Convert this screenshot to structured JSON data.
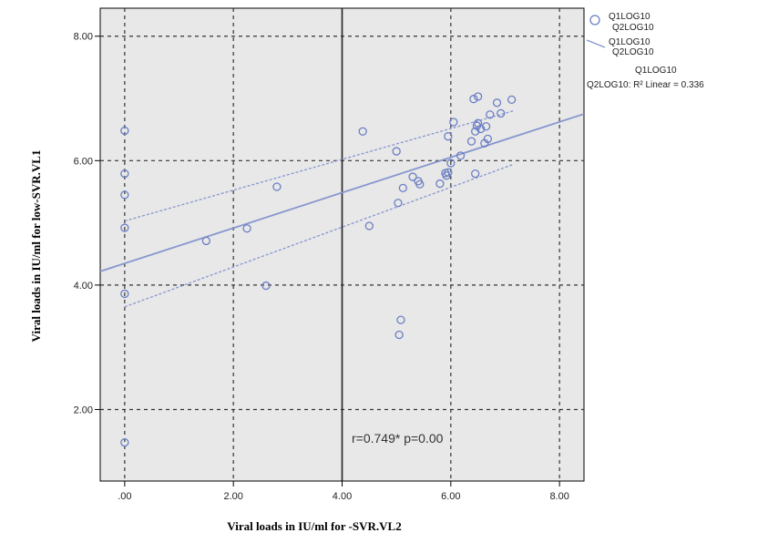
{
  "chart_data": {
    "type": "scatter",
    "xlabel": "Viral loads in IU/ml for -SVR.VL2",
    "ylabel": "Viral loads in IU/ml for low-SVR.VL1",
    "xlim": [
      -0.45,
      8.45
    ],
    "ylim": [
      0.85,
      8.45
    ],
    "x_ticks": [
      0,
      2,
      4,
      6,
      8
    ],
    "x_tick_labels": [
      ".00",
      "2.00",
      "4.00",
      "6.00",
      "8.00"
    ],
    "y_ticks": [
      2,
      4,
      6,
      8
    ],
    "y_tick_labels": [
      "2.00",
      "4.00",
      "6.00",
      "8.00"
    ],
    "grid": "dashed",
    "reference_line_x": 4.0,
    "legend_position": "outside-right",
    "annotation": "r=0.749* p=0.00",
    "colors": {
      "points": "#6b7fc4",
      "fit": "#8796cf",
      "background": "#e8e8e8"
    },
    "series": [
      {
        "legend_label": [
          "Q1LOG10",
          "Q2LOG10"
        ],
        "kind": "points",
        "points": [
          [
            0,
            6.48
          ],
          [
            0,
            5.79
          ],
          [
            0,
            5.45
          ],
          [
            0,
            4.92
          ],
          [
            0,
            3.86
          ],
          [
            0,
            1.47
          ],
          [
            1.5,
            4.71
          ],
          [
            2.25,
            4.91
          ],
          [
            2.6,
            3.99
          ],
          [
            2.8,
            5.58
          ],
          [
            4.38,
            6.47
          ],
          [
            4.5,
            4.95
          ],
          [
            5.0,
            6.15
          ],
          [
            5.03,
            5.32
          ],
          [
            5.05,
            3.2
          ],
          [
            5.08,
            3.44
          ],
          [
            5.12,
            5.56
          ],
          [
            5.3,
            5.74
          ],
          [
            5.4,
            5.67
          ],
          [
            5.43,
            5.62
          ],
          [
            5.8,
            5.63
          ],
          [
            5.9,
            5.8
          ],
          [
            5.92,
            5.76
          ],
          [
            5.95,
            6.39
          ],
          [
            5.95,
            5.81
          ],
          [
            6.0,
            5.96
          ],
          [
            6.05,
            6.62
          ],
          [
            6.18,
            6.08
          ],
          [
            6.38,
            6.31
          ],
          [
            6.42,
            6.99
          ],
          [
            6.45,
            5.79
          ],
          [
            6.45,
            6.47
          ],
          [
            6.48,
            6.56
          ],
          [
            6.5,
            7.03
          ],
          [
            6.5,
            6.6
          ],
          [
            6.55,
            6.51
          ],
          [
            6.62,
            6.28
          ],
          [
            6.65,
            6.55
          ],
          [
            6.68,
            6.35
          ],
          [
            6.72,
            6.74
          ],
          [
            6.85,
            6.93
          ],
          [
            6.92,
            6.76
          ],
          [
            7.12,
            6.98
          ]
        ]
      },
      {
        "legend_label": [
          "Q1LOG10",
          "Q2LOG10"
        ],
        "kind": "linear-fit",
        "line": [
          [
            -0.45,
            4.22
          ],
          [
            8.45,
            6.75
          ]
        ]
      }
    ],
    "ci_lower": [
      [
        0,
        3.65
      ],
      [
        7.15,
        5.94
      ]
    ],
    "ci_upper": [
      [
        0,
        5.03
      ],
      [
        7.15,
        6.8
      ]
    ],
    "fit_label": [
      "Q1LOG10",
      "Q2LOG10: R² Linear = 0.336"
    ]
  }
}
